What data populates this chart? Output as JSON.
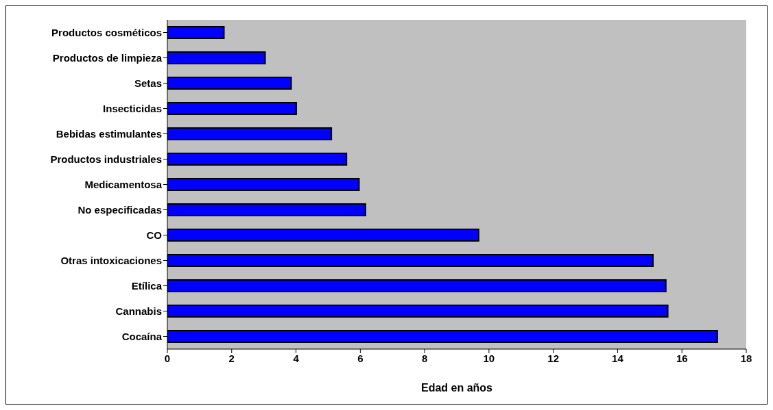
{
  "chart_data": {
    "type": "bar",
    "orientation": "horizontal",
    "xlabel": "Edad en años",
    "categories": [
      "Productos cosméticos",
      "Productos de limpieza",
      "Setas",
      "Insecticidas",
      "Bebidas estimulantes",
      "Productos industriales",
      "Medicamentosa",
      "No especificadas",
      "CO",
      "Otras intoxicaciones",
      "Etílica",
      "Cannabis",
      "Cocaína"
    ],
    "values": [
      1.76,
      3.04,
      3.85,
      4.01,
      5.1,
      5.57,
      5.96,
      6.16,
      9.68,
      15.1,
      15.5,
      15.56,
      17.1
    ],
    "color": "#0000ff",
    "xlim": [
      0,
      18
    ],
    "xticks": [
      0,
      2,
      4,
      6,
      8,
      10,
      12,
      14,
      16,
      18
    ],
    "grid": false,
    "legend": false
  }
}
